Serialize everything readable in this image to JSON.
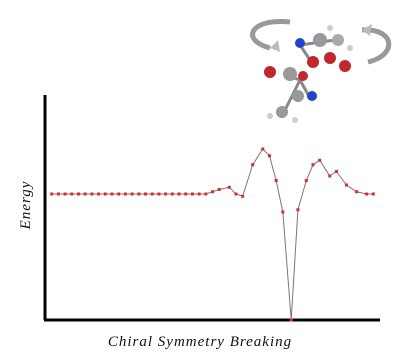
{
  "chart_data": {
    "type": "line",
    "x_label": "Chiral Symmetry Breaking",
    "y_label": "Energy",
    "x": [
      2,
      4,
      6,
      8,
      10,
      12,
      14,
      16,
      18,
      20,
      22,
      24,
      26,
      28,
      30,
      32,
      34,
      36,
      38,
      40,
      42,
      44,
      46,
      48,
      50,
      52,
      55,
      57,
      59,
      62,
      65,
      67,
      69,
      71,
      73.5,
      75.5,
      78,
      80,
      82,
      85,
      87,
      90,
      93,
      96,
      98
    ],
    "values": [
      56,
      56,
      56,
      56,
      56,
      56,
      56,
      56,
      56,
      56,
      56,
      56,
      56,
      56,
      56,
      56,
      56,
      56,
      56,
      56,
      56,
      56,
      56,
      56,
      57,
      58,
      59,
      56,
      55,
      69,
      76,
      73,
      62,
      48,
      0,
      49,
      62,
      69,
      71,
      64,
      66,
      60,
      57,
      56,
      56
    ],
    "line_color": "#777777",
    "marker_color": "#e0282c",
    "xlim": [
      0,
      100
    ],
    "ylim": [
      0,
      100
    ]
  }
}
